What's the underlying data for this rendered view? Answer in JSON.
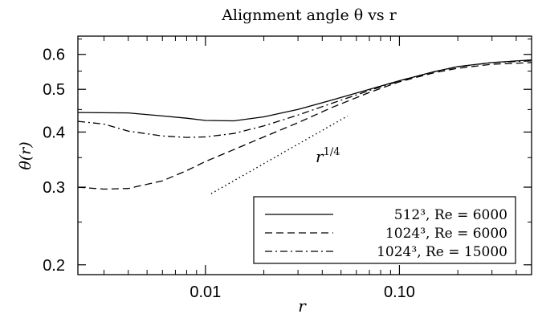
{
  "chart_data": {
    "type": "line",
    "title": "Alignment angle θ vs r",
    "xlabel": "r",
    "ylabel": "θ(r)",
    "xscale": "log",
    "yscale": "log",
    "xlim": [
      0.0022,
      0.48
    ],
    "ylim": [
      0.19,
      0.66
    ],
    "xticks": [
      {
        "value": 0.01,
        "label": "0.01"
      },
      {
        "value": 0.1,
        "label": "0.10"
      }
    ],
    "yticks": [
      {
        "value": 0.2,
        "label": "0.2"
      },
      {
        "value": 0.3,
        "label": "0.3"
      },
      {
        "value": 0.4,
        "label": "0.4"
      },
      {
        "value": 0.5,
        "label": "0.5"
      },
      {
        "value": 0.6,
        "label": "0.6"
      }
    ],
    "grid": false,
    "legend": {
      "position": "bottom-right"
    },
    "series": [
      {
        "name": "512³, Re = 6000",
        "dash": "solid",
        "x": [
          0.0022,
          0.004,
          0.006,
          0.008,
          0.01,
          0.014,
          0.02,
          0.03,
          0.045,
          0.07,
          0.1,
          0.15,
          0.2,
          0.3,
          0.48
        ],
        "y": [
          0.443,
          0.442,
          0.435,
          0.43,
          0.425,
          0.424,
          0.433,
          0.45,
          0.473,
          0.5,
          0.523,
          0.548,
          0.563,
          0.575,
          0.583
        ]
      },
      {
        "name": "1024³, Re = 6000",
        "dash": "dashed",
        "x": [
          0.0022,
          0.003,
          0.004,
          0.006,
          0.008,
          0.01,
          0.014,
          0.02,
          0.03,
          0.045,
          0.07,
          0.1,
          0.15,
          0.2,
          0.3,
          0.48
        ],
        "y": [
          0.3,
          0.297,
          0.298,
          0.31,
          0.327,
          0.343,
          0.365,
          0.39,
          0.42,
          0.455,
          0.492,
          0.52,
          0.545,
          0.558,
          0.57,
          0.575
        ]
      },
      {
        "name": "1024³, Re = 15000",
        "dash": "dashdot",
        "x": [
          0.0022,
          0.003,
          0.004,
          0.006,
          0.008,
          0.01,
          0.014,
          0.02,
          0.03,
          0.045,
          0.07,
          0.1,
          0.15,
          0.2,
          0.3,
          0.48
        ],
        "y": [
          0.423,
          0.417,
          0.402,
          0.392,
          0.389,
          0.39,
          0.397,
          0.413,
          0.437,
          0.465,
          0.497,
          0.522,
          0.548,
          0.562,
          0.575,
          0.58
        ]
      }
    ],
    "reference_line": {
      "label": "r",
      "label_exponent": "1/4",
      "dash": "dotted",
      "x": [
        0.0107,
        0.054
      ],
      "y": [
        0.29,
        0.435
      ]
    }
  }
}
